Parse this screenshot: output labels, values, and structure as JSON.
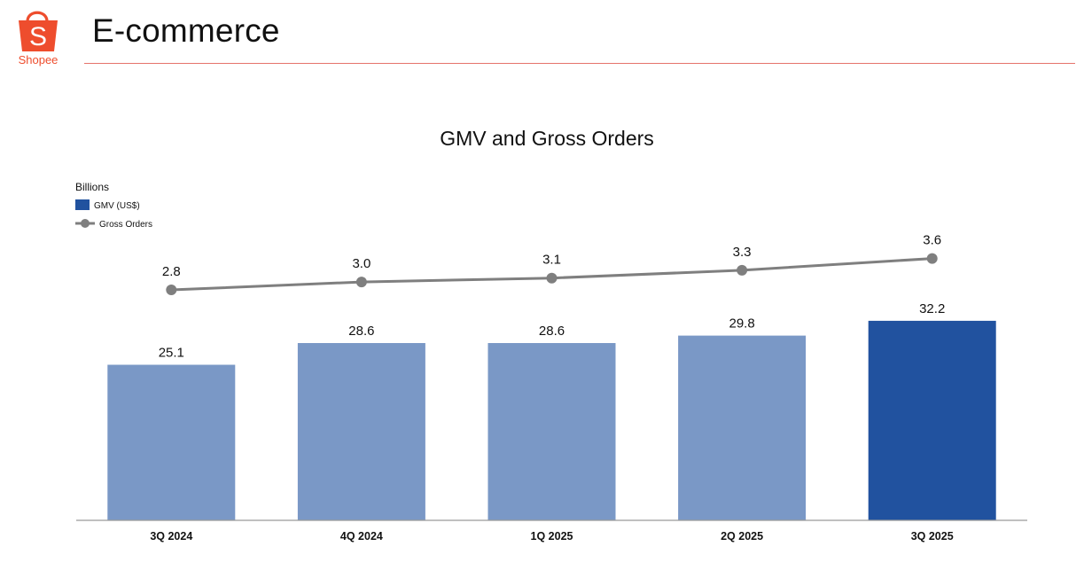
{
  "brand": {
    "name": "Shopee",
    "logo_letter": "S",
    "color": "#ee4d2d"
  },
  "page": {
    "title": "E-commerce",
    "rule_color": "#e5736b"
  },
  "chart_data": {
    "type": "bar",
    "title": "GMV and Gross Orders",
    "unit_label": "Billions",
    "categories": [
      "3Q 2024",
      "4Q 2024",
      "1Q 2025",
      "2Q 2025",
      "3Q 2025"
    ],
    "series": [
      {
        "name": "GMV (US$)",
        "type": "bar",
        "values": [
          25.1,
          28.6,
          28.6,
          29.8,
          32.2
        ],
        "labels": [
          "25.1",
          "28.6",
          "28.6",
          "29.8",
          "32.2"
        ],
        "color": "#7a98c6",
        "highlight_color": "#21529f",
        "highlight_index": 4
      },
      {
        "name": "Gross Orders",
        "type": "line",
        "values": [
          2.8,
          3.0,
          3.1,
          3.3,
          3.6
        ],
        "labels": [
          "2.8",
          "3.0",
          "3.1",
          "3.3",
          "3.6"
        ],
        "color": "#7f7f7f"
      }
    ],
    "legend_position": "top-left",
    "grid": false
  }
}
